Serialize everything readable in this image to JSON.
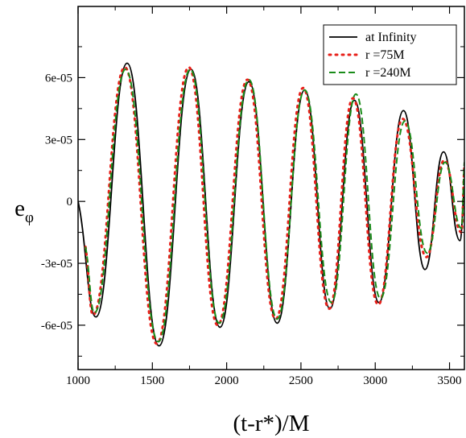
{
  "chart_data": {
    "type": "line",
    "title": "",
    "xlabel": "(t-r*)/M",
    "ylabel_main": "e",
    "ylabel_sub": "φ",
    "xlim": [
      1000,
      3600
    ],
    "ylim": [
      -8.15e-05,
      9.45e-05
    ],
    "xticks": [
      1000,
      1500,
      2000,
      2500,
      3000,
      3500
    ],
    "xtick_labels": [
      "1000",
      "1500",
      "2000",
      "2500",
      "3000",
      "3500"
    ],
    "yticks": [
      6e-05,
      3e-05,
      0,
      -3e-05,
      -6e-05
    ],
    "ytick_labels": [
      "6e-05",
      "3e-05",
      "0",
      "-3e-05",
      "-6e-05"
    ],
    "grid": false,
    "legend_position": "top-right",
    "series": [
      {
        "name": "at Infinity",
        "color": "#000000",
        "style": "solid",
        "x": [
          1000,
          1120,
          1330,
          1545,
          1760,
          1955,
          2150,
          2340,
          2525,
          2695,
          2860,
          3025,
          3190,
          3335,
          3460,
          3570,
          3600
        ],
        "y": [
          0,
          -5.6e-05,
          6.7e-05,
          -7e-05,
          6.4e-05,
          -6.1e-05,
          5.8e-05,
          -5.9e-05,
          5.4e-05,
          -5.2e-05,
          4.9e-05,
          -4.9e-05,
          4.4e-05,
          -3.3e-05,
          2.4e-05,
          -1.9e-05,
          7e-06
        ]
      },
      {
        "name": "r =75M",
        "color": "#e8201a",
        "style": "dotted",
        "x": [
          1050,
          1100,
          1315,
          1530,
          1745,
          1940,
          2140,
          2330,
          2515,
          2690,
          2850,
          3020,
          3185,
          3345,
          3465,
          3580,
          3600
        ],
        "y": [
          -2.2e-05,
          -5.5e-05,
          6.5e-05,
          -6.9e-05,
          6.5e-05,
          -6e-05,
          5.9e-05,
          -5.7e-05,
          5.5e-05,
          -5.2e-05,
          5e-05,
          -5e-05,
          4e-05,
          -2.7e-05,
          2e-05,
          -1.5e-05,
          1.7e-05
        ]
      },
      {
        "name": "r =240M",
        "color": "#1a8c1a",
        "style": "dashed",
        "x": [
          1050,
          1110,
          1320,
          1540,
          1755,
          1950,
          2150,
          2340,
          2525,
          2705,
          2870,
          3035,
          3200,
          3350,
          3470,
          3580,
          3600
        ],
        "y": [
          -2.2e-05,
          -5.4e-05,
          6.4e-05,
          -6.8e-05,
          6.4e-05,
          -5.9e-05,
          5.9e-05,
          -5.7e-05,
          5.4e-05,
          -4.9e-05,
          5.2e-05,
          -4.7e-05,
          3.9e-05,
          -2.5e-05,
          1.9e-05,
          -1.3e-05,
          1.9e-05
        ]
      }
    ]
  }
}
